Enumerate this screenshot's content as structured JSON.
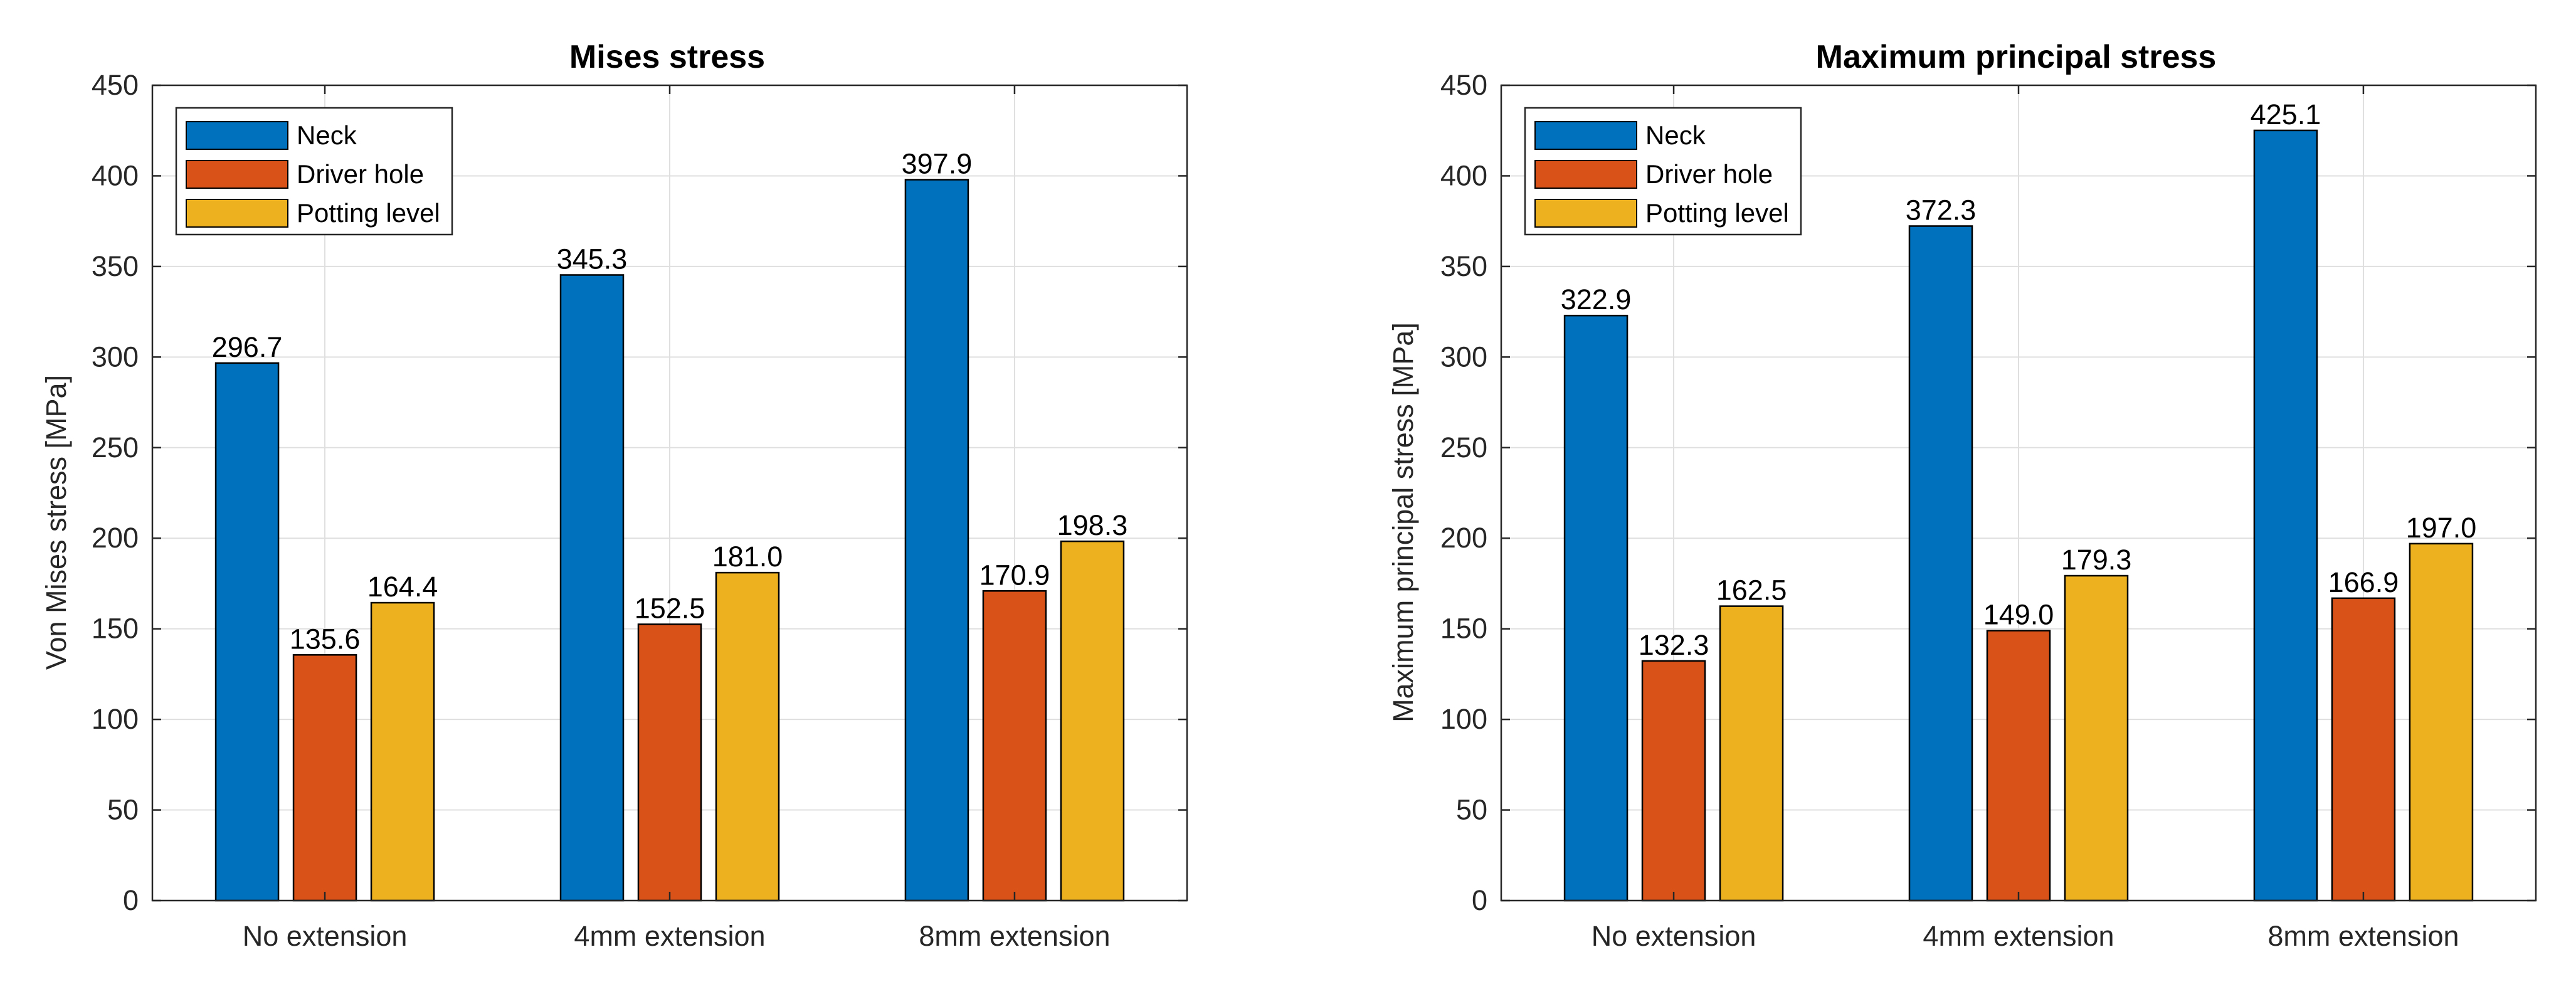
{
  "chart_data": [
    {
      "type": "bar",
      "title": "Mises stress",
      "xlabel": "",
      "ylabel": "Von Mises stress [MPa]",
      "categories": [
        "No extension",
        "4mm extension",
        "8mm extension"
      ],
      "ylim": [
        0,
        450
      ],
      "yticks": [
        0,
        50,
        100,
        150,
        200,
        250,
        300,
        350,
        400,
        450
      ],
      "grid": true,
      "legend_position": "top-left",
      "series": [
        {
          "name": "Neck",
          "color": "#0072BD",
          "values": [
            296.7,
            345.3,
            397.9
          ],
          "labels": [
            "296.7",
            "345.3",
            "397.9"
          ]
        },
        {
          "name": "Driver hole",
          "color": "#D95319",
          "values": [
            135.6,
            152.5,
            170.9
          ],
          "labels": [
            "135.6",
            "152.5",
            "170.9"
          ]
        },
        {
          "name": "Potting level",
          "color": "#EDB120",
          "values": [
            164.4,
            181.0,
            198.3
          ],
          "labels": [
            "164.4",
            "181.0",
            "198.3"
          ]
        }
      ]
    },
    {
      "type": "bar",
      "title": "Maximum principal stress",
      "xlabel": "",
      "ylabel": "Maximum principal stress [MPa]",
      "categories": [
        "No extension",
        "4mm extension",
        "8mm extension"
      ],
      "ylim": [
        0,
        450
      ],
      "yticks": [
        0,
        50,
        100,
        150,
        200,
        250,
        300,
        350,
        400,
        450
      ],
      "grid": true,
      "legend_position": "top-left",
      "series": [
        {
          "name": "Neck",
          "color": "#0072BD",
          "values": [
            322.9,
            372.3,
            425.1
          ],
          "labels": [
            "322.9",
            "372.3",
            "425.1"
          ]
        },
        {
          "name": "Driver hole",
          "color": "#D95319",
          "values": [
            132.3,
            149.0,
            166.9
          ],
          "labels": [
            "132.3",
            "149.0",
            "166.9"
          ]
        },
        {
          "name": "Potting level",
          "color": "#EDB120",
          "values": [
            162.5,
            179.3,
            197.0
          ],
          "labels": [
            "162.5",
            "179.3",
            "197.0"
          ]
        }
      ]
    }
  ]
}
